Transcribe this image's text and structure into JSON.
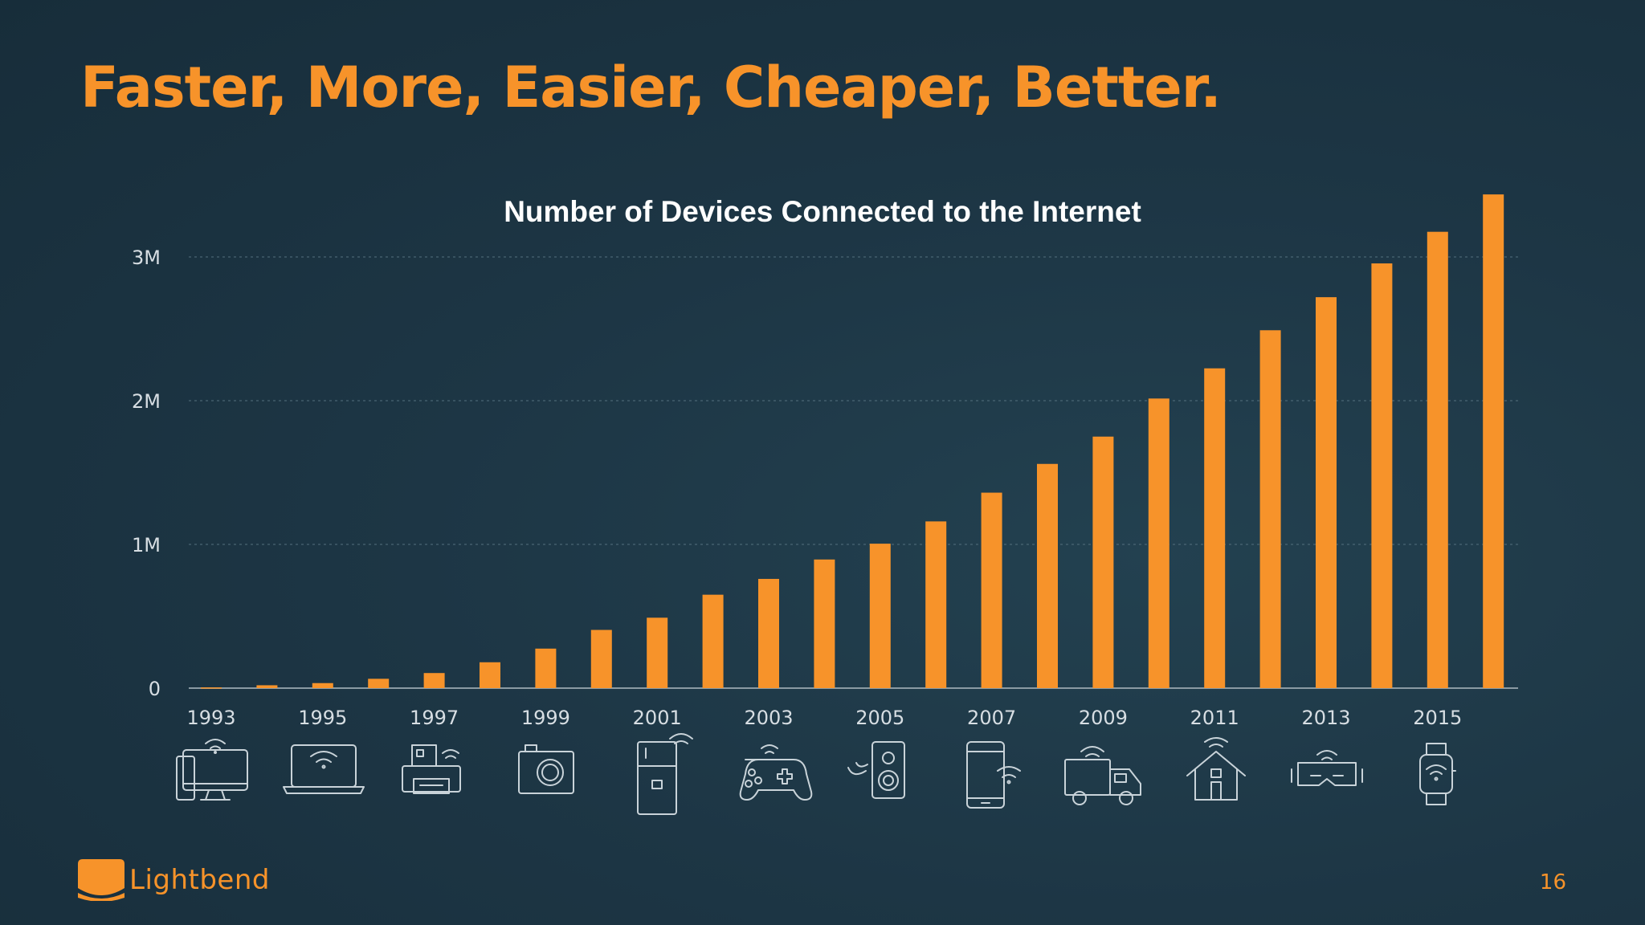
{
  "slide": {
    "title": "Faster, More, Easier, Cheaper, Better.",
    "page_number": "16",
    "brand": "Lightbend"
  },
  "colors": {
    "accent": "#f7932a",
    "background": "#1d3645",
    "text_light": "#ffffff",
    "icon_stroke": "#c9d3d9"
  },
  "chart_data": {
    "type": "bar",
    "title": "Number of Devices Connected to the Internet",
    "xlabel": "",
    "ylabel": "",
    "categories": [
      "1993",
      "1994",
      "1995",
      "1996",
      "1997",
      "1998",
      "1999",
      "2000",
      "2001",
      "2002",
      "2003",
      "2004",
      "2005",
      "2006",
      "2007",
      "2008",
      "2009",
      "2010",
      "2011",
      "2012",
      "2013",
      "2014",
      "2015",
      "2016"
    ],
    "values": [
      5000,
      20000,
      35000,
      65000,
      105000,
      180000,
      275000,
      405000,
      490000,
      650000,
      760000,
      895000,
      1005000,
      1160000,
      1360000,
      1560000,
      1750000,
      2015000,
      2225000,
      2490000,
      2720000,
      2955000,
      3175000,
      3435000
    ],
    "x_tick_labels": [
      "1993",
      "1995",
      "1997",
      "1999",
      "2001",
      "2003",
      "2005",
      "2007",
      "2009",
      "2011",
      "2013",
      "2015"
    ],
    "y_ticks": [
      {
        "value": 0,
        "label": "0"
      },
      {
        "value": 1000000,
        "label": "1M"
      },
      {
        "value": 2000000,
        "label": "2M"
      },
      {
        "value": 3000000,
        "label": "3M"
      }
    ],
    "ylim": [
      0,
      3500000
    ],
    "grid": "horizontal-dotted",
    "legend": "none",
    "bar_color": "#f7932a"
  },
  "device_icons": [
    "desktop-icon",
    "laptop-icon",
    "printer-icon",
    "camera-icon",
    "fridge-icon",
    "gamepad-icon",
    "speaker-icon",
    "smartphone-icon",
    "truck-icon",
    "smart-home-icon",
    "vr-headset-icon",
    "smartwatch-icon"
  ]
}
